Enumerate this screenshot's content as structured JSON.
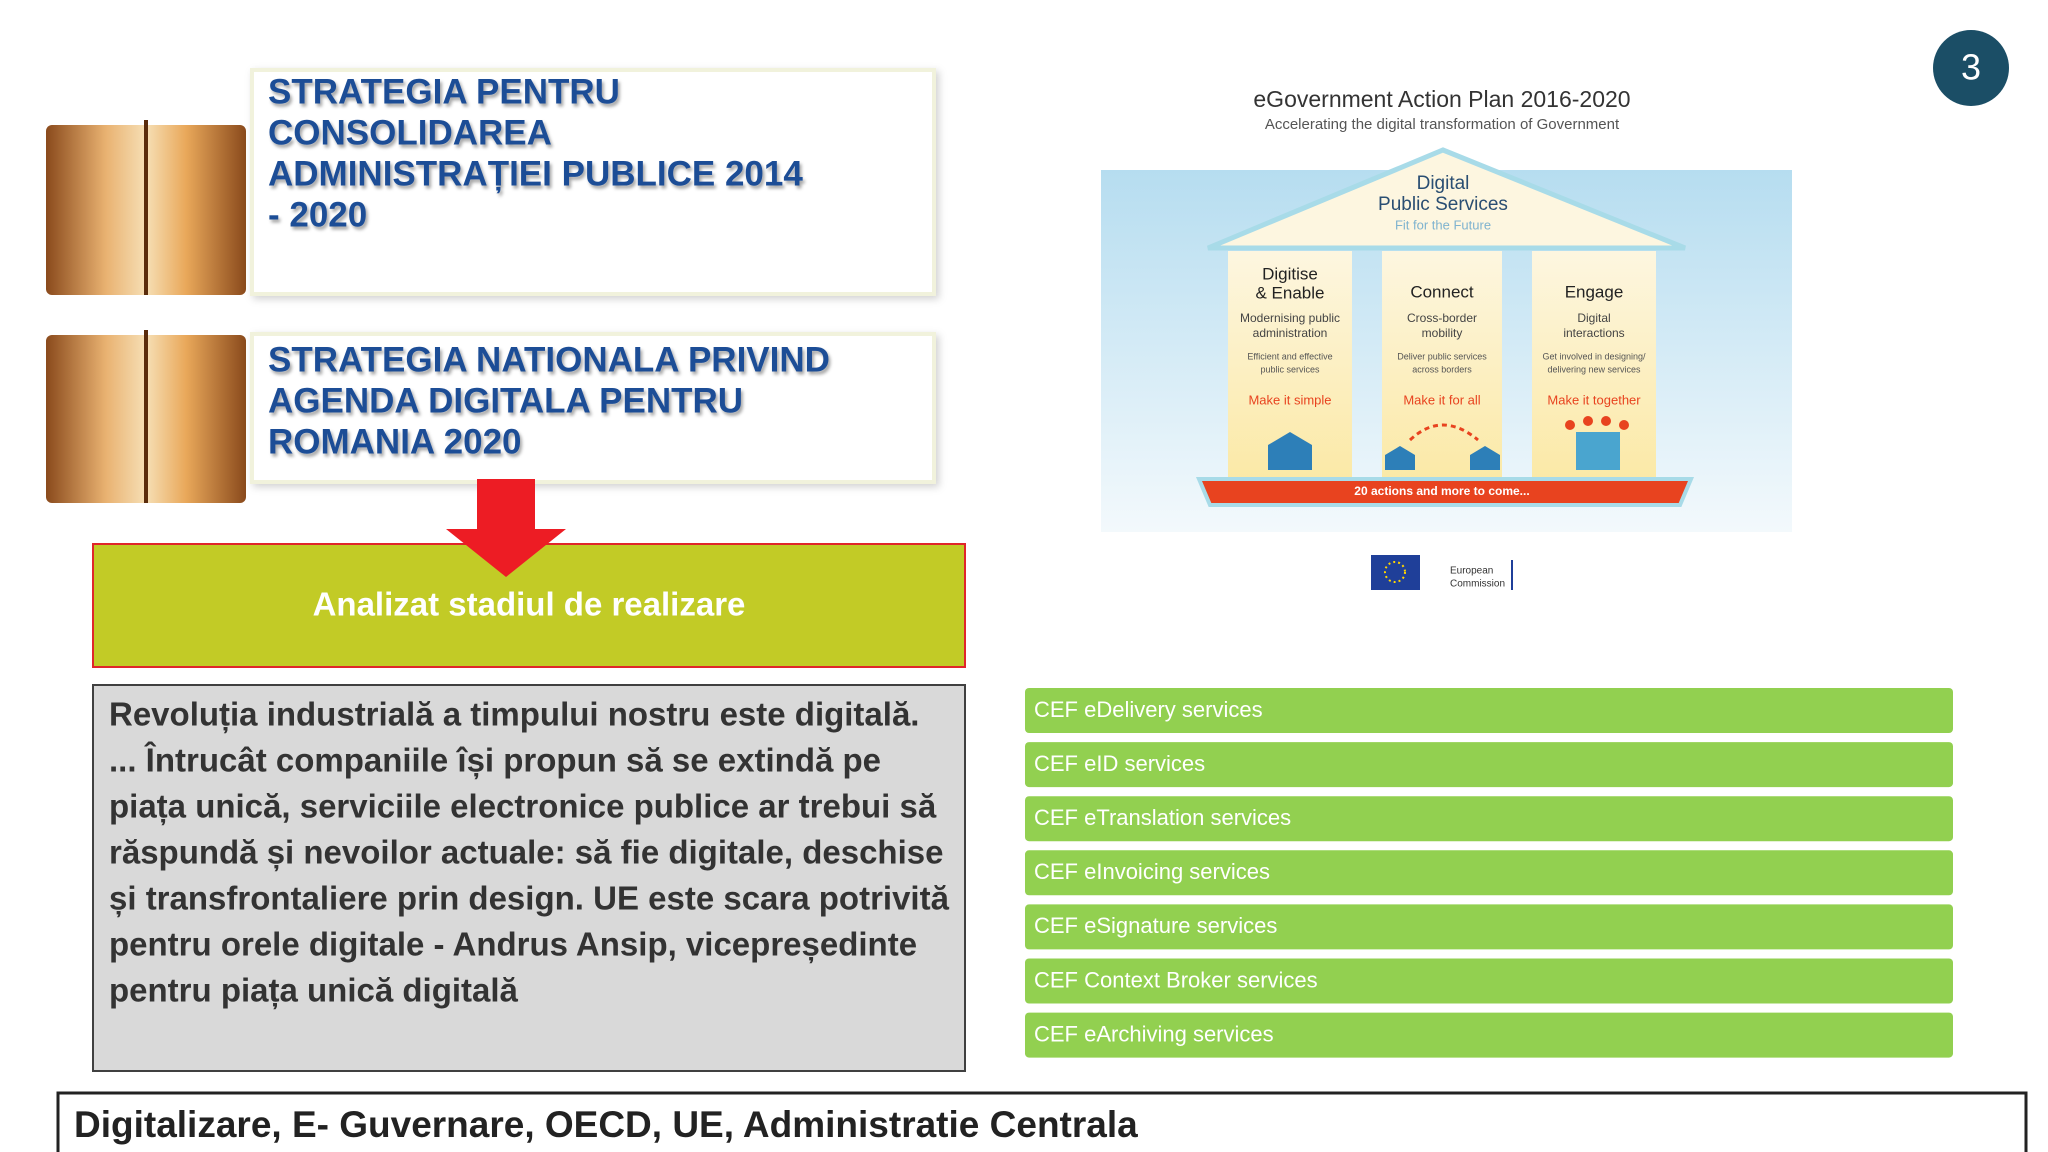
{
  "page_number": "3",
  "strategies": [
    {
      "title_lines": [
        "STRATEGIA PENTRU",
        "CONSOLIDAREA",
        "ADMINISTRAȚIEI PUBLICE 2014",
        "- 2020"
      ]
    },
    {
      "title_lines": [
        "STRATEGIA NATIONALA PRIVIND",
        "AGENDA DIGITALA PENTRU",
        "ROMANIA 2020"
      ]
    }
  ],
  "status_box": "Analizat stadiul de realizare",
  "quote_lines": [
    "Revoluția industrială a timpului nostru este digitală.",
    "... Întrucât companiile își propun să se extindă pe",
    "piața unică, serviciile electronice publice ar trebui să",
    "răspundă și nevoilor actuale: să fie digitale, deschise",
    "și transfrontaliere prin design. UE este scara potrivită",
    "pentru orele digitale - Andrus Ansip, vicepreședinte",
    "pentru piața unică digitală"
  ],
  "action_plan": {
    "title": "eGovernment Action Plan 2016-2020",
    "subtitle": "Accelerating the digital transformation of Government",
    "roof": [
      "Digital",
      "Public Services"
    ],
    "roof_tagline": "Fit for the Future",
    "pillars": [
      {
        "name": [
          "Digitise",
          "& Enable"
        ],
        "goal": [
          "Modernising public",
          "administration"
        ],
        "detail": [
          "Efficient and effective",
          "public services"
        ],
        "motto": "Make it simple"
      },
      {
        "name": [
          "Connect"
        ],
        "goal": [
          "Cross-border",
          "mobility"
        ],
        "detail": [
          "Deliver public services",
          "across borders"
        ],
        "motto": "Make it for all"
      },
      {
        "name": [
          "Engage"
        ],
        "goal": [
          "Digital",
          "interactions"
        ],
        "detail": [
          "Get involved in designing/",
          "delivering new services"
        ],
        "motto": "Make it together"
      }
    ],
    "base": "20 actions and more to come...",
    "issuer": [
      "European",
      "Commission"
    ]
  },
  "cef_services": [
    "CEF eDelivery services",
    "CEF eID services",
    "CEF eTranslation services",
    "CEF eInvoicing services",
    "CEF eSignature services",
    "CEF Context Broker services",
    "CEF eArchiving services"
  ],
  "footer": "Digitalizare, E- Guvernare, OECD, UE, Administratie Centrala"
}
